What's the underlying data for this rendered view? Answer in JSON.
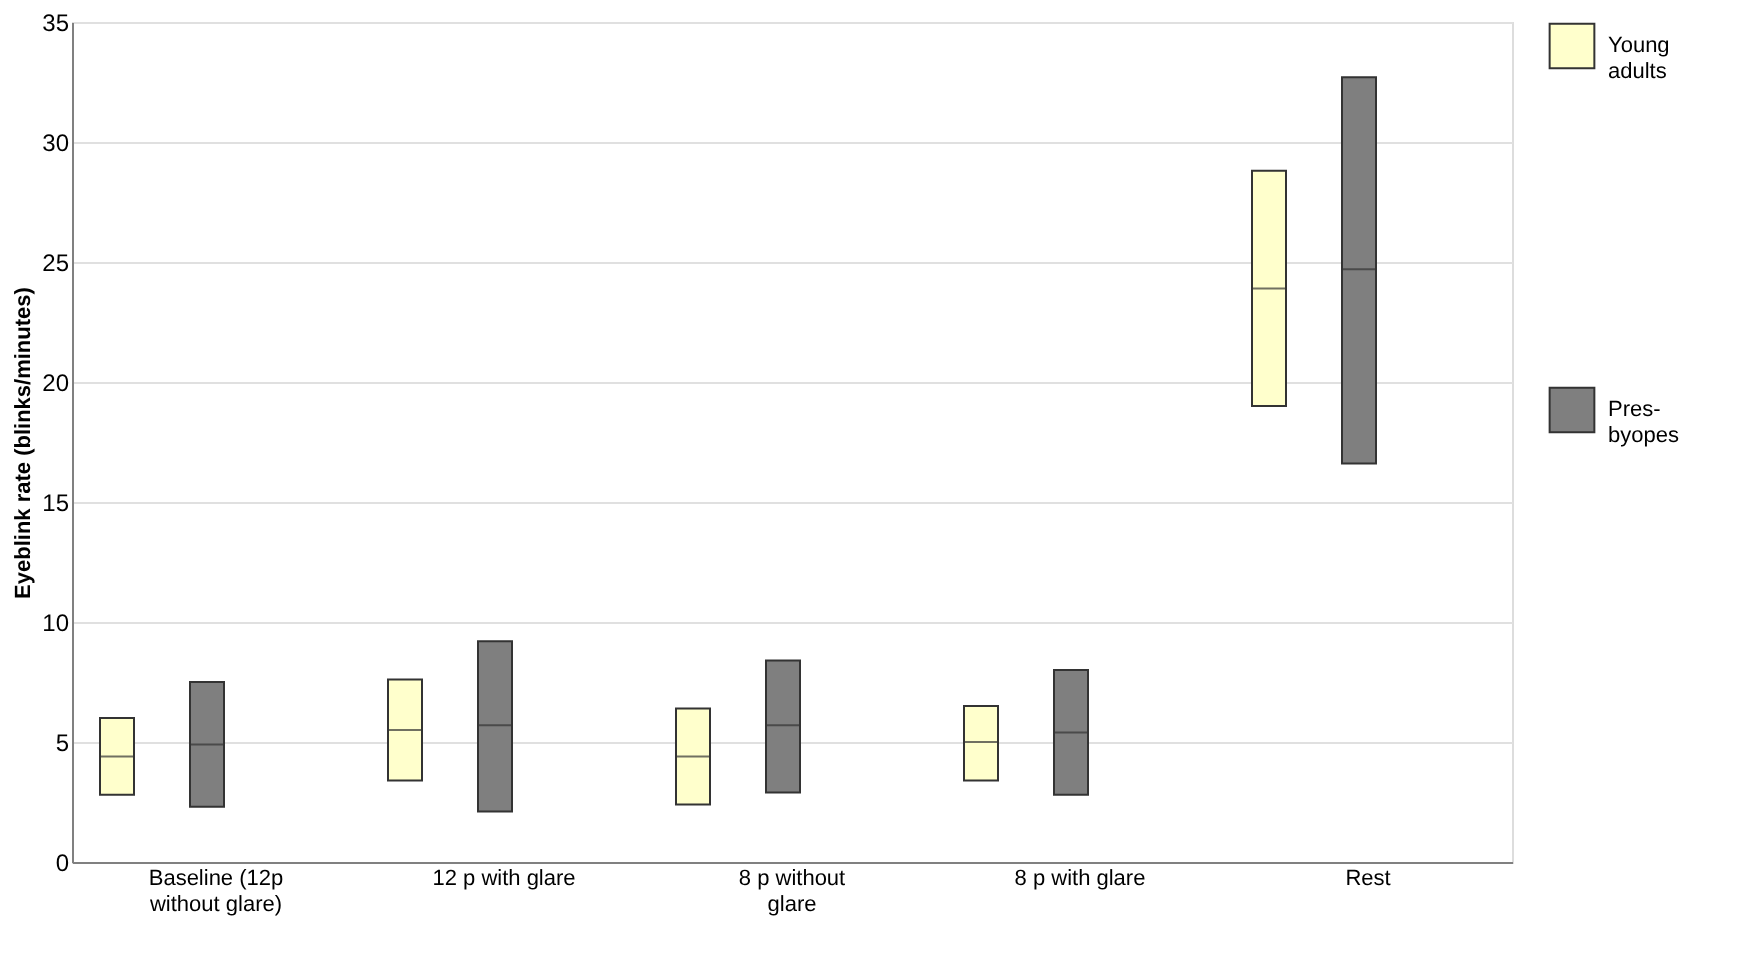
{
  "chart_data": {
    "type": "box",
    "ylabel": "Eyeblink rate (blinks/minutes)",
    "categories": [
      "Baseline (12p without glare)",
      "12 p with glare",
      "8 p without glare",
      "8 p with glare",
      "Rest"
    ],
    "series": [
      {
        "name": "Young adults",
        "color": "#ffffcc",
        "boxes": [
          {
            "low": 2.8,
            "q1": 2.8,
            "median": 4.4,
            "q3": 6.0,
            "high": 6.0
          },
          {
            "low": 3.4,
            "q1": 3.4,
            "median": 5.5,
            "q3": 7.6,
            "high": 7.6
          },
          {
            "low": 2.4,
            "q1": 2.4,
            "median": 4.4,
            "q3": 6.4,
            "high": 6.4
          },
          {
            "low": 3.4,
            "q1": 3.4,
            "median": 5.0,
            "q3": 6.5,
            "high": 6.5
          },
          {
            "low": 19.0,
            "q1": 19.0,
            "median": 23.9,
            "q3": 28.8,
            "high": 28.8
          }
        ]
      },
      {
        "name": "Pres-byopes",
        "color": "#7f7f7f",
        "boxes": [
          {
            "low": 2.3,
            "q1": 2.3,
            "median": 4.9,
            "q3": 7.5,
            "high": 7.5
          },
          {
            "low": 2.1,
            "q1": 2.1,
            "median": 5.7,
            "q3": 9.2,
            "high": 9.2
          },
          {
            "low": 2.9,
            "q1": 2.9,
            "median": 5.7,
            "q3": 8.4,
            "high": 8.4
          },
          {
            "low": 2.8,
            "q1": 2.8,
            "median": 5.4,
            "q3": 8.0,
            "high": 8.0
          },
          {
            "low": 16.6,
            "q1": 16.6,
            "median": 24.7,
            "q3": 32.7,
            "high": 32.7
          }
        ]
      }
    ],
    "ylim": [
      0,
      35
    ],
    "yticks": [
      0,
      5,
      10,
      15,
      20,
      25,
      30,
      35
    ],
    "grid": "y",
    "legend": "right"
  }
}
